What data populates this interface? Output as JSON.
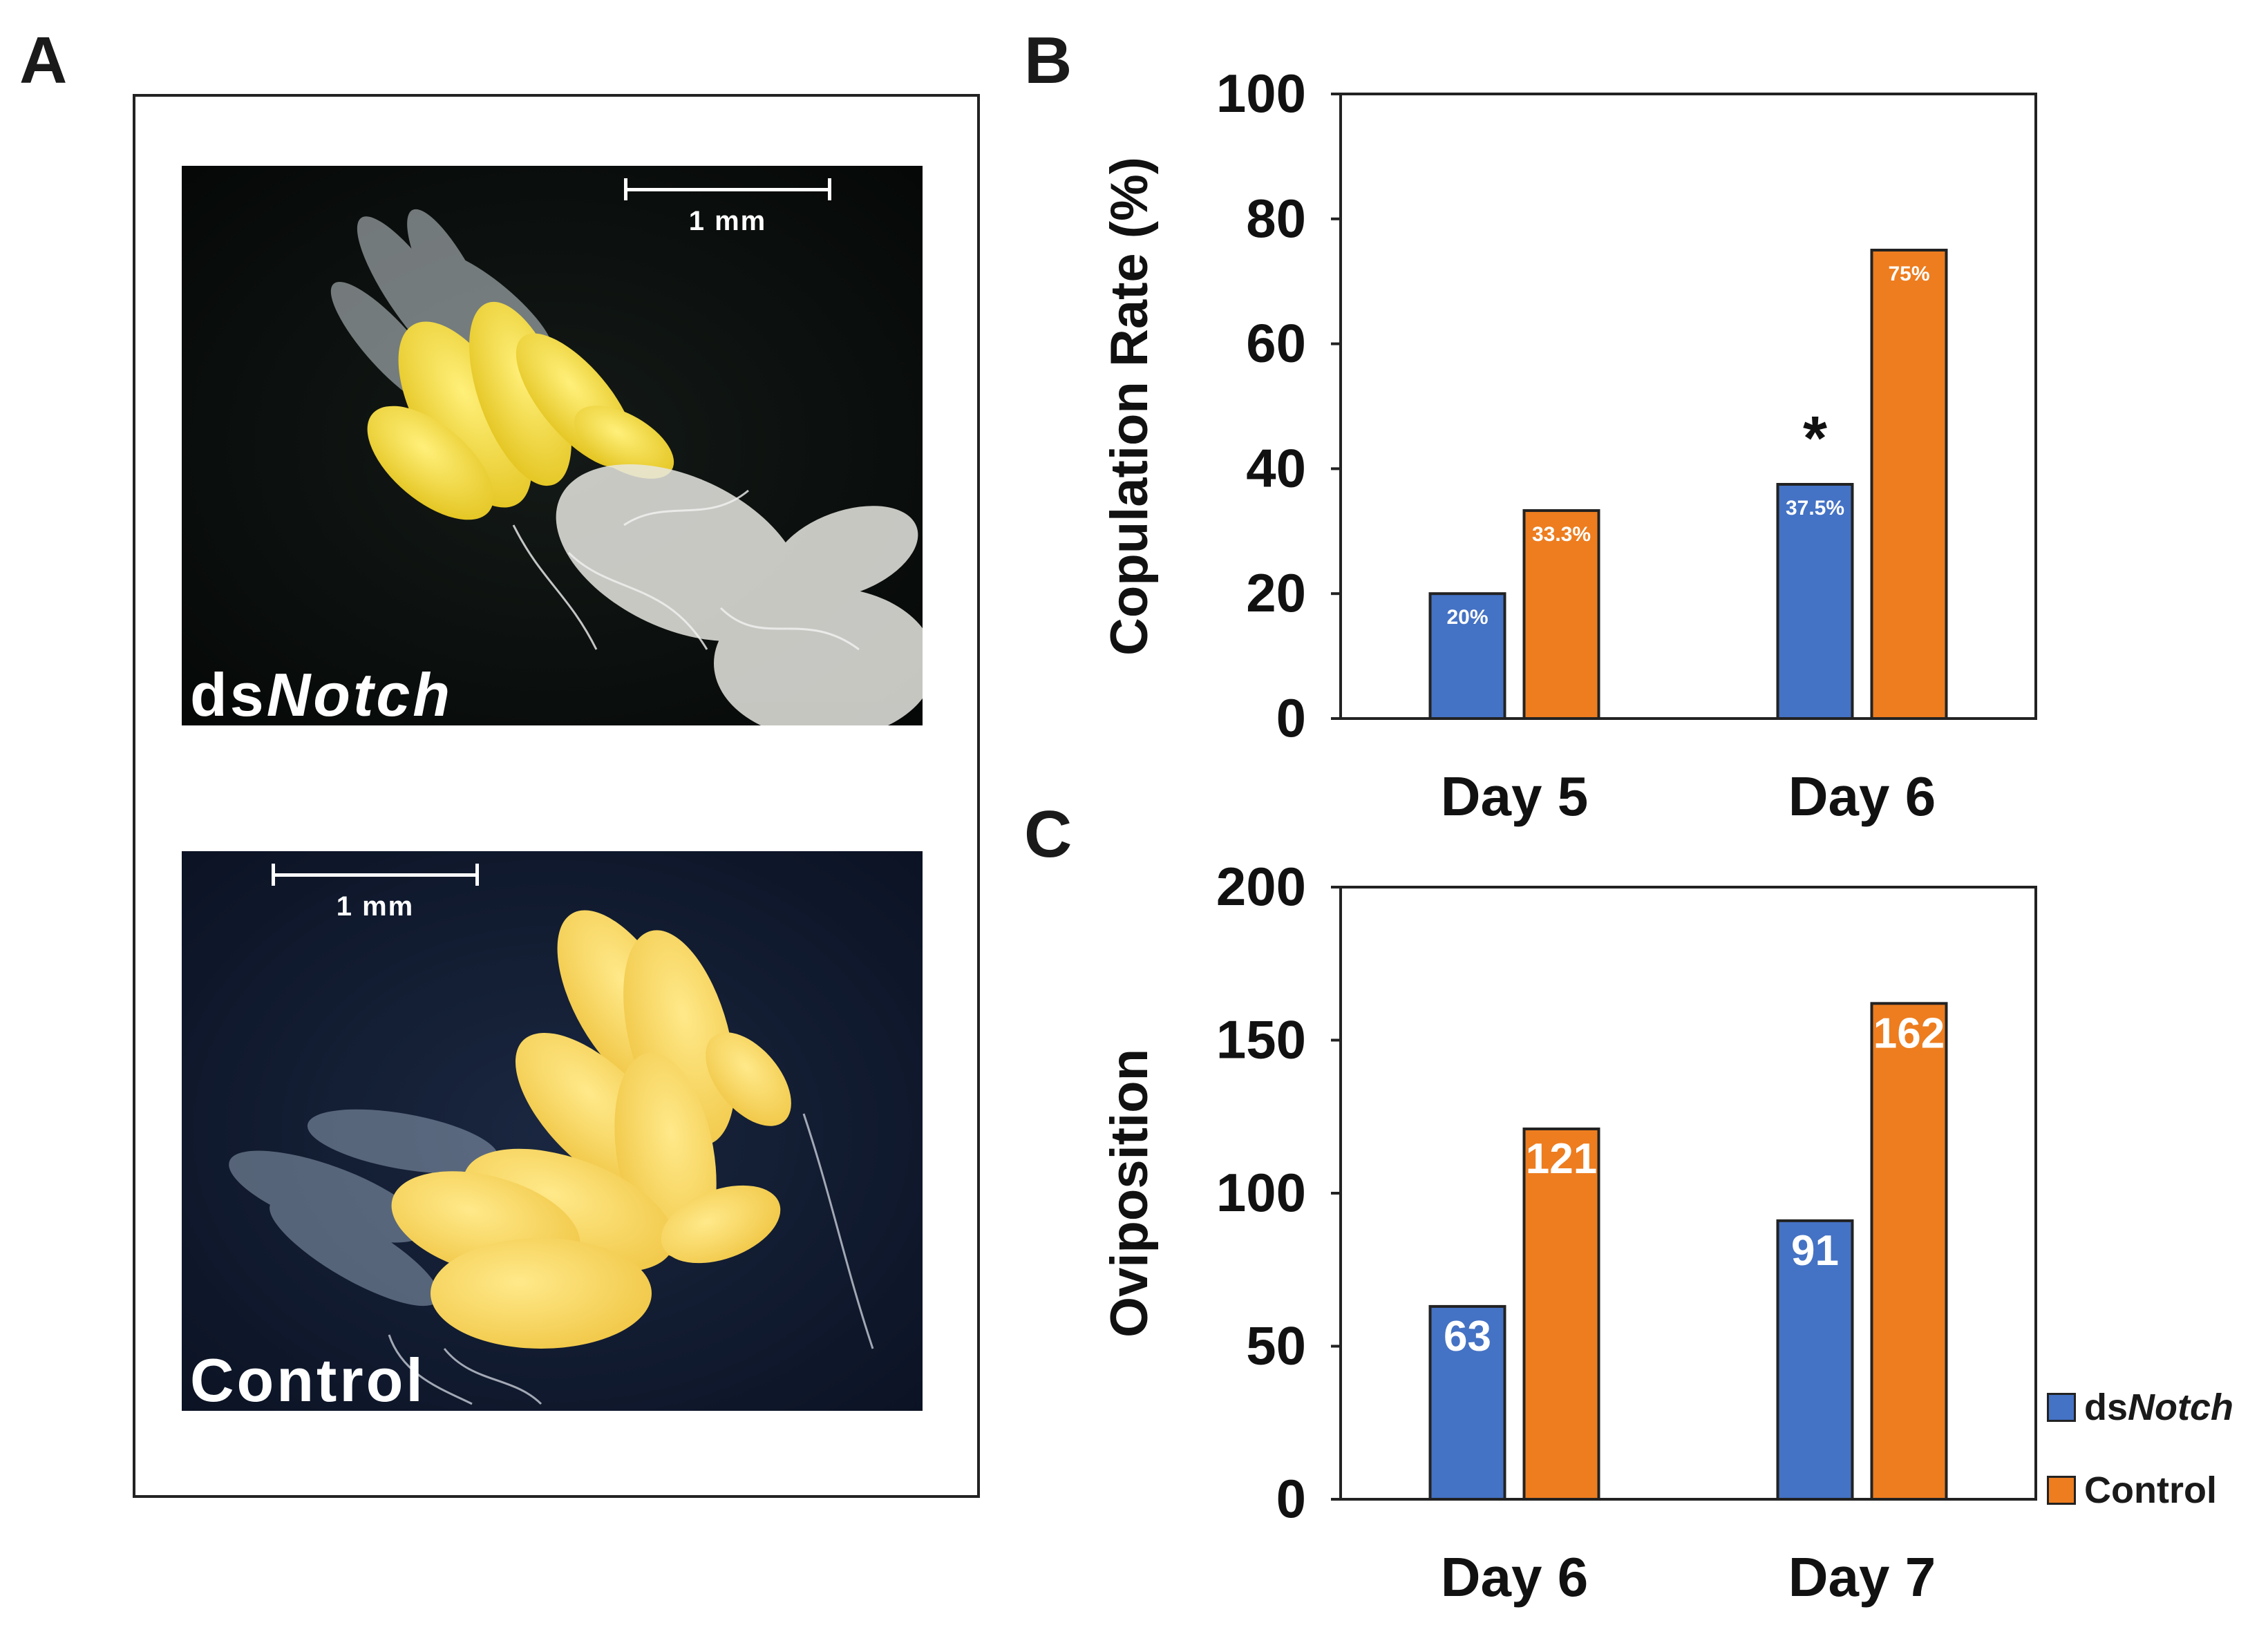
{
  "panels": {
    "a": "A",
    "b": "B",
    "c": "C"
  },
  "photos": {
    "top": {
      "label_prefix": "ds",
      "label_italic": "Notch",
      "scale": "1 mm"
    },
    "bottom": {
      "label": "Control",
      "scale": "1 mm"
    }
  },
  "colors": {
    "dsNotch": "#4472c4",
    "control": "#ed7d1f"
  },
  "legend": [
    {
      "prefix": "ds",
      "italic": "Notch",
      "color": "#4472c4"
    },
    {
      "prefix": "Control",
      "italic": "",
      "color": "#ed7d1f"
    }
  ],
  "chart_data": [
    {
      "id": "B",
      "type": "bar",
      "title": "",
      "xlabel": "",
      "ylabel": "Copulation Rate  (%)",
      "ylim": [
        0,
        100
      ],
      "yticks": [
        0,
        20,
        40,
        60,
        80,
        100
      ],
      "categories": [
        "Day 5",
        "Day 6"
      ],
      "series": [
        {
          "name": "dsNotch",
          "values": [
            20,
            37.5
          ],
          "labels": [
            "20%",
            "37.5%"
          ]
        },
        {
          "name": "Control",
          "values": [
            33.3,
            75
          ],
          "labels": [
            "33.3%",
            "75%"
          ]
        }
      ],
      "annotations": [
        {
          "text": "*",
          "category": "Day 6",
          "series": "dsNotch"
        }
      ]
    },
    {
      "id": "C",
      "type": "bar",
      "title": "",
      "xlabel": "",
      "ylabel": "Oviposition",
      "ylim": [
        0,
        200
      ],
      "yticks": [
        0,
        50,
        100,
        150,
        200
      ],
      "categories": [
        "Day 6",
        "Day 7"
      ],
      "series": [
        {
          "name": "dsNotch",
          "values": [
            63,
            91
          ],
          "labels": [
            "63",
            "91"
          ]
        },
        {
          "name": "Control",
          "values": [
            121,
            162
          ],
          "labels": [
            "121",
            "162"
          ]
        }
      ],
      "legend_position": "right"
    }
  ]
}
